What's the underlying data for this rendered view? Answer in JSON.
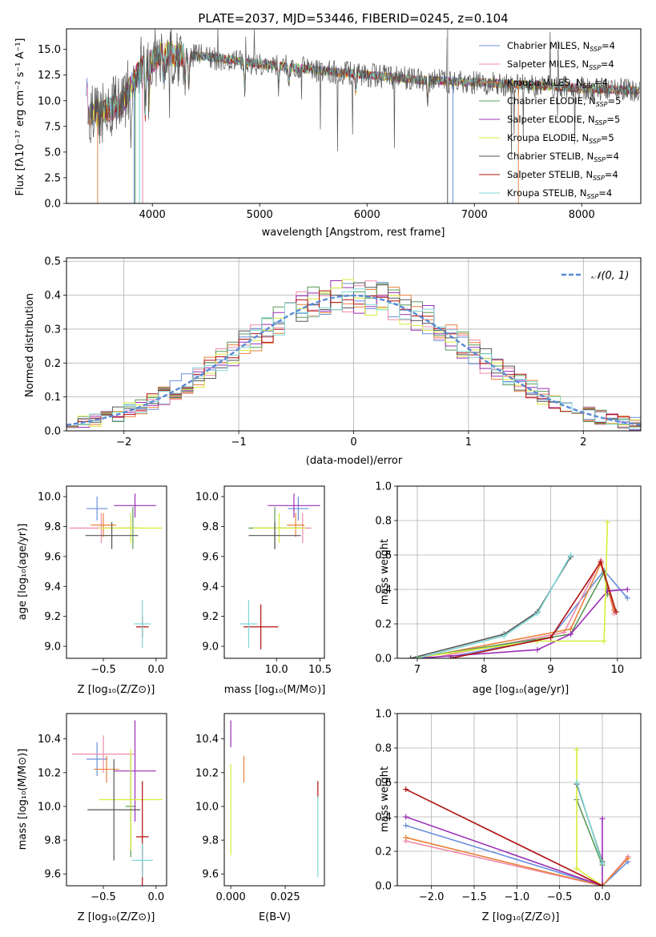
{
  "figure": {
    "title": "PLATE=2037, MJD=53446, FIBERID=0245, z=0.104"
  },
  "panels": {
    "spectrum": {
      "xlabel": "wavelength [Angstrom, rest frame]",
      "ylabel": "Flux [fλ10⁻¹⁷ erg cm⁻² s⁻¹ A⁻¹]"
    },
    "residuals": {
      "xlabel": "(data-model)/error",
      "ylabel": "Normed distribution",
      "legend": "𝒩(0, 1)"
    },
    "age_vs_Z": {
      "xlabel": "Z [log₁₀(Z/Z⊙)]",
      "ylabel": "age  [log₁₀(age/yr)]"
    },
    "age_vs_mass": {
      "xlabel": "mass [log₁₀(M/M⊙)]"
    },
    "weight_vs_age": {
      "xlabel": "age  [log₁₀(age/yr)]",
      "ylabel": "mass weight"
    },
    "mass_vs_Z": {
      "xlabel": "Z [log₁₀(Z/Z⊙)]",
      "ylabel": "mass [log₁₀(M/M⊙)]"
    },
    "mass_vs_ebv": {
      "xlabel": "E(B-V)"
    },
    "weight_vs_Z": {
      "xlabel": "Z [log₁₀(Z/Z⊙)]",
      "ylabel": "mass weight"
    }
  },
  "models": [
    {
      "name": "Chabrier MILES, N_SSP=4",
      "color": "#6a8edb"
    },
    {
      "name": "Salpeter MILES, N_SSP=4",
      "color": "#ef8aa8"
    },
    {
      "name": "Kroupa MILES, N_SSP=4",
      "color": "#e8823a"
    },
    {
      "name": "Chabrier ELODIE, N_SSP=5",
      "color": "#5a9a5a"
    },
    {
      "name": "Salpeter ELODIE, N_SSP=5",
      "color": "#9b2fb5"
    },
    {
      "name": "Kroupa ELODIE, N_SSP=5",
      "color": "#d8ec3a"
    },
    {
      "name": "Chabrier STELIB, N_SSP=4",
      "color": "#555555"
    },
    {
      "name": "Salpeter STELIB, N_SSP=4",
      "color": "#b01010"
    },
    {
      "name": "Kroupa STELIB, N_SSP=4",
      "color": "#7fd6d6"
    }
  ],
  "legend_labels": [
    "Chabrier MILES, N",
    "Salpeter MILES, N",
    "Kroupa MILES, N",
    "Chabrier ELODIE, N",
    "Salpeter ELODIE, N",
    "Kroupa ELODIE, N",
    "Chabrier STELIB, N",
    "Salpeter STELIB, N",
    "Kroupa STELIB, N"
  ],
  "legend_sub": "SSP",
  "legend_counts": [
    "=4",
    "=4",
    "=4",
    "=5",
    "=5",
    "=5",
    "=4",
    "=4",
    "=4"
  ],
  "chart_data": [
    {
      "id": "spectrum",
      "type": "line",
      "xlim": [
        3200,
        8550
      ],
      "ylim": [
        0,
        17
      ],
      "xticks": [
        4000,
        5000,
        6000,
        7000,
        8000
      ],
      "yticks": [
        0.0,
        2.5,
        5.0,
        7.5,
        10.0,
        12.5,
        15.0
      ],
      "continuum": [
        [
          3400,
          8.6
        ],
        [
          3700,
          9.5
        ],
        [
          3900,
          13.2
        ],
        [
          4100,
          14.6
        ],
        [
          4500,
          14.3
        ],
        [
          5000,
          13.6
        ],
        [
          5500,
          13.0
        ],
        [
          6000,
          12.5
        ],
        [
          6500,
          12.0
        ],
        [
          7000,
          11.8
        ],
        [
          7500,
          11.5
        ],
        [
          8000,
          11.2
        ],
        [
          8500,
          11.0
        ]
      ]
    },
    {
      "id": "residuals",
      "type": "histogram",
      "xlim": [
        -2.5,
        2.5
      ],
      "ylim": [
        0,
        0.51
      ],
      "xticks": [
        -2,
        -1,
        0,
        1,
        2
      ],
      "yticks": [
        0.0,
        0.1,
        0.2,
        0.3,
        0.4,
        0.5
      ],
      "bin_width": 0.1,
      "reference": "normal pdf, mean 0, sigma 1"
    },
    {
      "id": "age_vs_Z",
      "type": "errorbar",
      "xlim": [
        -0.85,
        0.1
      ],
      "ylim": [
        8.92,
        10.07
      ],
      "xticks": [
        -0.5,
        0.0
      ],
      "yticks": [
        9.0,
        9.2,
        9.4,
        9.6,
        9.8,
        10.0
      ],
      "points": [
        {
          "model": 0,
          "x": -0.56,
          "xerr": 0.1,
          "y": 9.92,
          "yerr": 0.08
        },
        {
          "model": 1,
          "x": -0.52,
          "xerr": 0.3,
          "y": 9.79,
          "yerr": 0.1
        },
        {
          "model": 2,
          "x": -0.5,
          "xerr": 0.12,
          "y": 9.81,
          "yerr": 0.08
        },
        {
          "model": 3,
          "x": -0.22,
          "xerr": 0.05,
          "y": 9.79,
          "yerr": 0.14
        },
        {
          "model": 4,
          "x": -0.2,
          "xerr": 0.2,
          "y": 9.94,
          "yerr": 0.08
        },
        {
          "model": 5,
          "x": -0.24,
          "xerr": 0.3,
          "y": 9.79,
          "yerr": 0.1
        },
        {
          "model": 6,
          "x": -0.42,
          "xerr": 0.25,
          "y": 9.74,
          "yerr": 0.09
        },
        {
          "model": 7,
          "x": -0.13,
          "xerr": 0.06,
          "y": 9.13,
          "yerr": 0.07
        },
        {
          "model": 8,
          "x": -0.13,
          "xerr": 0.08,
          "y": 9.15,
          "yerr": 0.16
        }
      ]
    },
    {
      "id": "age_vs_mass",
      "type": "errorbar",
      "xlim": [
        9.4,
        10.55
      ],
      "ylim": [
        8.92,
        10.07
      ],
      "xticks": [
        10.0,
        10.5
      ],
      "yticks": [
        9.0,
        9.2,
        9.4,
        9.6,
        9.8,
        10.0
      ],
      "points": [
        {
          "model": 0,
          "x": 10.25,
          "xerr": 0.12,
          "y": 9.92,
          "yerr": 0.08
        },
        {
          "model": 1,
          "x": 10.3,
          "xerr": 0.1,
          "y": 9.79,
          "yerr": 0.1
        },
        {
          "model": 2,
          "x": 10.22,
          "xerr": 0.1,
          "y": 9.81,
          "yerr": 0.08
        },
        {
          "model": 3,
          "x": 9.98,
          "xerr": 0.3,
          "y": 9.79,
          "yerr": 0.14
        },
        {
          "model": 4,
          "x": 10.2,
          "xerr": 0.3,
          "y": 9.94,
          "yerr": 0.08
        },
        {
          "model": 5,
          "x": 10.03,
          "xerr": 0.3,
          "y": 9.79,
          "yerr": 0.1
        },
        {
          "model": 6,
          "x": 9.98,
          "xerr": 0.3,
          "y": 9.74,
          "yerr": 0.09
        },
        {
          "model": 7,
          "x": 9.82,
          "xerr": 0.2,
          "y": 9.13,
          "yerr": 0.15
        },
        {
          "model": 8,
          "x": 9.68,
          "xerr": 0.1,
          "y": 9.15,
          "yerr": 0.16
        }
      ]
    },
    {
      "id": "weight_vs_age",
      "type": "line",
      "xlim": [
        6.7,
        10.35
      ],
      "ylim": [
        0,
        1.0
      ],
      "xticks": [
        7,
        8,
        9,
        10
      ],
      "yticks": [
        0.0,
        0.2,
        0.4,
        0.6,
        0.8,
        1.0
      ],
      "series": [
        {
          "model": 0,
          "x": [
            7.5,
            9.0,
            9.8,
            10.15
          ],
          "y": [
            0.01,
            0.12,
            0.51,
            0.35
          ]
        },
        {
          "model": 1,
          "x": [
            7.2,
            9.2,
            9.75,
            9.95
          ],
          "y": [
            0.0,
            0.15,
            0.57,
            0.26
          ]
        },
        {
          "model": 2,
          "x": [
            7.0,
            9.3,
            9.75,
            9.95
          ],
          "y": [
            0.0,
            0.17,
            0.55,
            0.28
          ]
        },
        {
          "model": 3,
          "x": [
            6.9,
            9.3,
            9.8,
            9.85
          ],
          "y": [
            0.0,
            0.14,
            0.5,
            0.37
          ]
        },
        {
          "model": 4,
          "x": [
            7.0,
            8.8,
            9.3,
            9.85,
            10.15
          ],
          "y": [
            0.0,
            0.05,
            0.14,
            0.39,
            0.4
          ]
        },
        {
          "model": 5,
          "x": [
            6.9,
            8.8,
            9.8,
            9.85
          ],
          "y": [
            0.0,
            0.1,
            0.1,
            0.79
          ]
        },
        {
          "model": 6,
          "x": [
            6.9,
            8.3,
            8.8,
            9.3
          ],
          "y": [
            0.0,
            0.14,
            0.27,
            0.59
          ]
        },
        {
          "model": 7,
          "x": [
            7.5,
            9.0,
            9.75,
            9.98
          ],
          "y": [
            0.0,
            0.12,
            0.56,
            0.27
          ]
        },
        {
          "model": 8,
          "x": [
            7.0,
            8.3,
            8.8,
            9.3
          ],
          "y": [
            0.0,
            0.13,
            0.26,
            0.6
          ]
        }
      ]
    },
    {
      "id": "mass_vs_Z",
      "type": "errorbar",
      "xlim": [
        -0.85,
        0.1
      ],
      "ylim": [
        9.53,
        10.55
      ],
      "xticks": [
        -0.5,
        0.0
      ],
      "yticks": [
        9.6,
        9.8,
        10.0,
        10.2,
        10.4
      ],
      "points": [
        {
          "model": 0,
          "x": -0.56,
          "xerr": 0.1,
          "y": 10.28,
          "yerr": 0.1
        },
        {
          "model": 1,
          "x": -0.5,
          "xerr": 0.3,
          "y": 10.31,
          "yerr": 0.11
        },
        {
          "model": 2,
          "x": -0.47,
          "xerr": 0.12,
          "y": 10.22,
          "yerr": 0.08
        },
        {
          "model": 3,
          "x": -0.24,
          "xerr": 0.05,
          "y": 10.0,
          "yerr": 0.3
        },
        {
          "model": 4,
          "x": -0.2,
          "xerr": 0.2,
          "y": 10.21,
          "yerr": 0.3
        },
        {
          "model": 5,
          "x": -0.24,
          "xerr": 0.3,
          "y": 10.04,
          "yerr": 0.3
        },
        {
          "model": 6,
          "x": -0.4,
          "xerr": 0.25,
          "y": 9.98,
          "yerr": 0.3
        },
        {
          "model": 7,
          "x": -0.13,
          "xerr": 0.06,
          "y": 9.82,
          "yerr": 0.33
        },
        {
          "model": 8,
          "x": -0.13,
          "xerr": 0.1,
          "y": 9.68,
          "yerr": 0.1
        }
      ]
    },
    {
      "id": "mass_vs_ebv",
      "type": "errorbar",
      "xlim": [
        -0.003,
        0.043
      ],
      "ylim": [
        9.53,
        10.55
      ],
      "xticks": [
        0.0,
        0.025
      ],
      "yticks": [
        9.6,
        9.8,
        10.0,
        10.2,
        10.4
      ],
      "points": [
        {
          "model": 4,
          "x": 0.0,
          "xerr": 0.0,
          "y": 10.43,
          "yerr": 0.08
        },
        {
          "model": 5,
          "x": 0.0,
          "xerr": 0.0,
          "y": 9.98,
          "yerr": 0.27
        },
        {
          "model": 2,
          "x": 0.006,
          "xerr": 0.0,
          "y": 10.22,
          "yerr": 0.08
        },
        {
          "model": 7,
          "x": 0.04,
          "xerr": 0.0,
          "y": 10.1,
          "yerr": 0.05
        },
        {
          "model": 8,
          "x": 0.04,
          "xerr": 0.0,
          "y": 9.82,
          "yerr": 0.24
        }
      ]
    },
    {
      "id": "weight_vs_Z",
      "type": "line",
      "xlim": [
        -2.4,
        0.45
      ],
      "ylim": [
        0,
        1.0
      ],
      "xticks": [
        -2.0,
        -1.5,
        -1.0,
        -0.5,
        0.0
      ],
      "yticks": [
        0.0,
        0.2,
        0.4,
        0.6,
        0.8,
        1.0
      ],
      "series": [
        {
          "model": 0,
          "x": [
            -2.3,
            0.0,
            0.3
          ],
          "y": [
            0.35,
            0.0,
            0.14
          ]
        },
        {
          "model": 1,
          "x": [
            -2.3,
            0.0,
            0.3
          ],
          "y": [
            0.26,
            0.0,
            0.17
          ]
        },
        {
          "model": 2,
          "x": [
            -2.3,
            0.0,
            0.3
          ],
          "y": [
            0.28,
            0.0,
            0.16
          ]
        },
        {
          "model": 3,
          "x": [
            -0.3,
            0.0
          ],
          "y": [
            0.5,
            0.12
          ]
        },
        {
          "model": 4,
          "x": [
            -2.3,
            0.0,
            0.0
          ],
          "y": [
            0.4,
            0.0,
            0.39
          ]
        },
        {
          "model": 5,
          "x": [
            -0.3,
            -0.3,
            0.0
          ],
          "y": [
            0.79,
            0.1,
            0.0
          ]
        },
        {
          "model": 6,
          "x": [
            -0.3,
            0.0
          ],
          "y": [
            0.59,
            0.14
          ]
        },
        {
          "model": 7,
          "x": [
            -2.3,
            0.0
          ],
          "y": [
            0.56,
            0.0
          ]
        },
        {
          "model": 8,
          "x": [
            -0.3,
            0.0
          ],
          "y": [
            0.6,
            0.13
          ]
        }
      ]
    }
  ]
}
